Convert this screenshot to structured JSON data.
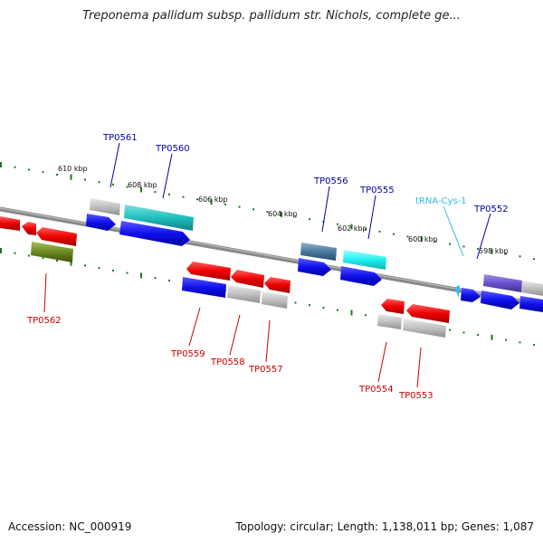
{
  "title": "Treponema pallidum subsp. pallidum str. Nichols, complete ge...",
  "footer": {
    "accession": "Accession: NC_000919",
    "summary": "Topology: circular; Length: 1,138,011 bp; Genes: 1,087"
  },
  "scale_ticks": [
    "610 kbp",
    "608 kbp",
    "606 kbp",
    "604 kbp",
    "602 kbp",
    "600 kbp",
    "598 kbp"
  ],
  "gene_labels_top": [
    "TP0561",
    "TP0560",
    "TP0556",
    "TP0555",
    "tRNA-Cys-1",
    "TP0552"
  ],
  "gene_labels_bottom": [
    "TP0562",
    "TP0559",
    "TP0558",
    "TP0557",
    "TP0554",
    "TP0553"
  ],
  "colors": {
    "forward_label": "#0000aa",
    "reverse_label": "#cc0000",
    "trna_label": "#33bbdd",
    "backbone": "#888888",
    "tick": "#1a7a1a"
  }
}
